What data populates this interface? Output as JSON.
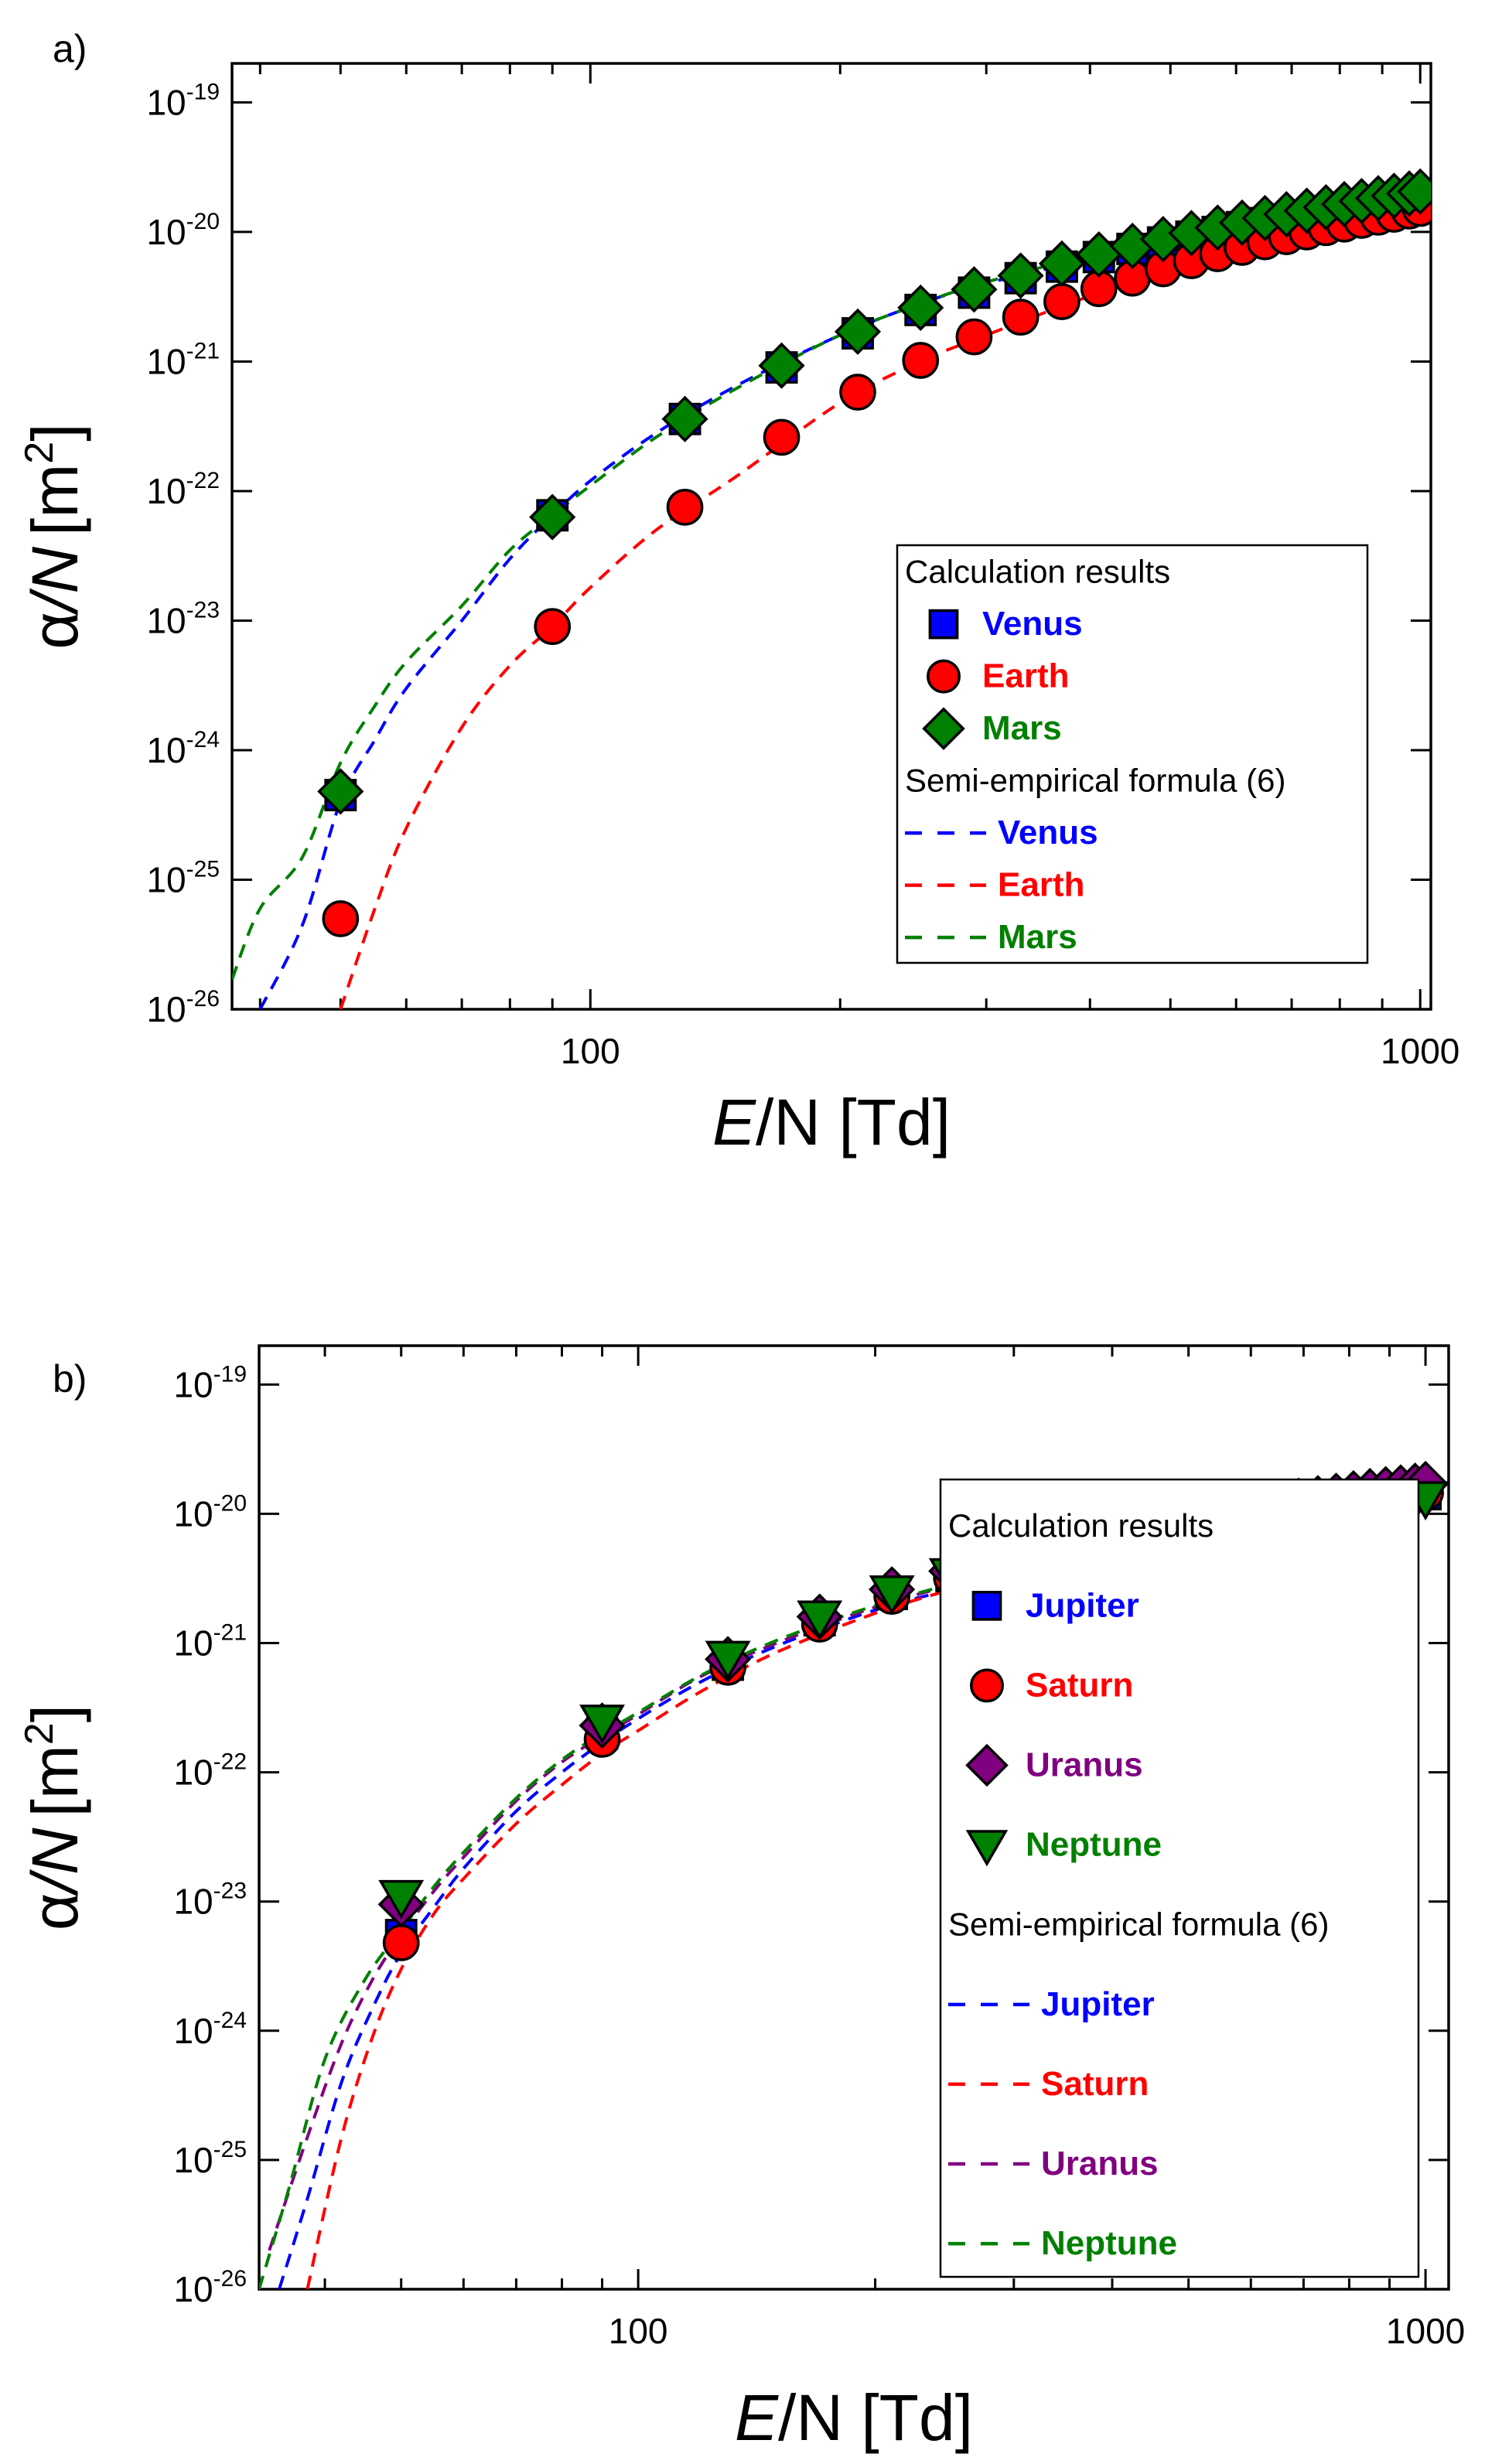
{
  "chart_data": [
    {
      "type": "scatter",
      "panel_label": "a)",
      "xlabel_italic": "E",
      "xlabel_rest": "/N [Td]",
      "ylabel_alpha": "α",
      "ylabel_N": "/N",
      "ylabel_unit": "[m",
      "ylabel_exp": "2",
      "ylabel_close": "]",
      "x_scale": "log",
      "y_scale": "log",
      "xlim": [
        37,
        1030
      ],
      "ylim": [
        1e-26,
        2e-19
      ],
      "x_ticks": [
        {
          "value": 100,
          "label": "100"
        },
        {
          "value": 1000,
          "label": "1000"
        }
      ],
      "y_ticks": [
        {
          "exp": -19,
          "base": "10",
          "sup": "-19"
        },
        {
          "exp": -20,
          "base": "10",
          "sup": "-20"
        },
        {
          "exp": -21,
          "base": "10",
          "sup": "-21"
        },
        {
          "exp": -22,
          "base": "10",
          "sup": "-22"
        },
        {
          "exp": -23,
          "base": "10",
          "sup": "-23"
        },
        {
          "exp": -24,
          "base": "10",
          "sup": "-24"
        },
        {
          "exp": -25,
          "base": "10",
          "sup": "-25"
        },
        {
          "exp": -26,
          "base": "10",
          "sup": "-26"
        }
      ],
      "legend": {
        "placement": "center-right",
        "points_header": "Calculation results",
        "lines_header": "Semi-empirical formula (6)"
      },
      "series": [
        {
          "name": "Venus",
          "color": "#0000ff",
          "marker": "square",
          "x": [
            50,
            90,
            130,
            170,
            210,
            250,
            290,
            330,
            370,
            410,
            450,
            490,
            530,
            570,
            610,
            650,
            690,
            730,
            770,
            810,
            850,
            890,
            930,
            970,
            1000
          ],
          "y": [
            4.5e-25,
            6.5e-23,
            3.6e-22,
            9e-22,
            1.65e-21,
            2.5e-21,
            3.4e-21,
            4.4e-21,
            5.4e-21,
            6.4e-21,
            7.4e-21,
            8.3e-21,
            9.2e-21,
            1e-20,
            1.09e-20,
            1.17e-20,
            1.25e-20,
            1.33e-20,
            1.41e-20,
            1.48e-20,
            1.55e-20,
            1.62e-20,
            1.69e-20,
            1.76e-20,
            1.82e-20
          ]
        },
        {
          "name": "Earth",
          "color": "#ff0000",
          "marker": "circle",
          "x": [
            50,
            90,
            130,
            170,
            210,
            250,
            290,
            330,
            370,
            410,
            450,
            490,
            530,
            570,
            610,
            650,
            690,
            730,
            770,
            810,
            850,
            890,
            930,
            970,
            1000
          ],
          "y": [
            5e-26,
            9e-24,
            7.5e-23,
            2.6e-22,
            5.8e-22,
            1.02e-21,
            1.55e-21,
            2.2e-21,
            2.9e-21,
            3.65e-21,
            4.4e-21,
            5.2e-21,
            6e-21,
            6.8e-21,
            7.6e-21,
            8.4e-21,
            9.2e-21,
            1e-20,
            1.08e-20,
            1.15e-20,
            1.23e-20,
            1.3e-20,
            1.37e-20,
            1.45e-20,
            1.52e-20
          ]
        },
        {
          "name": "Mars",
          "color": "#008000",
          "marker": "diamond",
          "x": [
            50,
            90,
            130,
            170,
            210,
            250,
            290,
            330,
            370,
            410,
            450,
            490,
            530,
            570,
            610,
            650,
            690,
            730,
            770,
            810,
            850,
            890,
            930,
            970,
            1000
          ],
          "y": [
            4.8e-25,
            6.3e-23,
            3.6e-22,
            9.3e-22,
            1.7e-21,
            2.6e-21,
            3.6e-21,
            4.6e-21,
            5.7e-21,
            6.7e-21,
            7.8e-21,
            8.8e-21,
            9.8e-21,
            1.08e-20,
            1.18e-20,
            1.28e-20,
            1.37e-20,
            1.46e-20,
            1.55e-20,
            1.64e-20,
            1.73e-20,
            1.82e-20,
            1.9e-20,
            1.98e-20,
            2.05e-20
          ]
        }
      ],
      "fits": [
        {
          "name": "Venus",
          "color": "#0000ff",
          "x": [
            40,
            45,
            50,
            55,
            60,
            70,
            80,
            90,
            100,
            120,
            150,
            200,
            250,
            300,
            400,
            500,
            600,
            800,
            1000
          ],
          "y": [
            1e-26,
            4.5e-26,
            4e-25,
            1.2e-24,
            3e-24,
            1e-23,
            3e-23,
            6.5e-23,
            1.2e-22,
            2.8e-22,
            6.5e-22,
            1.6e-21,
            2.8e-21,
            4e-21,
            6.2e-21,
            8.2e-21,
            1e-20,
            1.3e-20,
            1.6e-20
          ]
        },
        {
          "name": "Earth",
          "color": "#ff0000",
          "x": [
            50,
            55,
            60,
            70,
            80,
            90,
            100,
            120,
            150,
            200,
            250,
            300,
            400,
            500,
            600,
            800,
            1000
          ],
          "y": [
            1e-26,
            6e-26,
            2.5e-25,
            1.5e-24,
            4.5e-24,
            9e-24,
            1.8e-23,
            5e-23,
            1.3e-22,
            4.8e-22,
            1e-21,
            1.6e-21,
            3.2e-21,
            5e-21,
            6.6e-21,
            9.8e-21,
            1.25e-20
          ]
        },
        {
          "name": "Mars",
          "color": "#008000",
          "x": [
            37,
            40,
            45,
            50,
            55,
            60,
            70,
            80,
            90,
            100,
            120,
            150,
            200,
            250,
            300,
            400,
            500,
            600,
            800,
            1000
          ],
          "y": [
            1.7e-26,
            6e-26,
            1.5e-25,
            8e-25,
            2.2e-24,
            4.8e-24,
            1.3e-23,
            3.5e-23,
            6.5e-23,
            1.1e-22,
            2.6e-22,
            6.2e-22,
            1.6e-21,
            2.8e-21,
            4.1e-21,
            6.6e-21,
            9e-21,
            1.1e-20,
            1.5e-20,
            1.8e-20
          ]
        }
      ]
    },
    {
      "type": "scatter",
      "panel_label": "b)",
      "xlabel_italic": "E",
      "xlabel_rest": "/N [Td]",
      "ylabel_alpha": "α",
      "ylabel_N": "/N",
      "ylabel_unit": "[m",
      "ylabel_exp": "2",
      "ylabel_close": "]",
      "x_scale": "log",
      "y_scale": "log",
      "xlim": [
        33,
        1070
      ],
      "ylim": [
        1e-26,
        2e-19
      ],
      "x_ticks": [
        {
          "value": 100,
          "label": "100"
        },
        {
          "value": 1000,
          "label": "1000"
        }
      ],
      "y_ticks": [
        {
          "exp": -19,
          "base": "10",
          "sup": "-19"
        },
        {
          "exp": -20,
          "base": "10",
          "sup": "-20"
        },
        {
          "exp": -21,
          "base": "10",
          "sup": "-21"
        },
        {
          "exp": -22,
          "base": "10",
          "sup": "-22"
        },
        {
          "exp": -23,
          "base": "10",
          "sup": "-23"
        },
        {
          "exp": -24,
          "base": "10",
          "sup": "-24"
        },
        {
          "exp": -25,
          "base": "10",
          "sup": "-25"
        },
        {
          "exp": -26,
          "base": "10",
          "sup": "-26"
        }
      ],
      "legend": {
        "placement": "bottom-right",
        "points_header": "Calculation results",
        "lines_header": "Semi-empirical formula (6)"
      },
      "series": [
        {
          "name": "Jupiter",
          "color": "#0000ff",
          "marker": "square",
          "x": [
            50,
            90,
            130,
            170,
            210,
            250,
            290,
            330,
            370,
            410,
            450,
            490,
            530,
            570,
            610,
            650,
            690,
            730,
            770,
            810,
            850,
            890,
            930,
            970,
            1000
          ],
          "y": [
            5.5e-24,
            2e-22,
            6.8e-22,
            1.5e-21,
            2.4e-21,
            3.3e-21,
            4.2e-21,
            5e-21,
            5.8e-21,
            6.5e-21,
            7.2e-21,
            7.9e-21,
            8.5e-21,
            9.1e-21,
            9.7e-21,
            1.02e-20,
            1.07e-20,
            1.12e-20,
            1.17e-20,
            1.22e-20,
            1.27e-20,
            1.31e-20,
            1.35e-20,
            1.39e-20,
            1.42e-20
          ]
        },
        {
          "name": "Saturn",
          "color": "#ff0000",
          "marker": "circle",
          "x": [
            50,
            90,
            130,
            170,
            210,
            250,
            290,
            330,
            370,
            410,
            450,
            490,
            530,
            570,
            610,
            650,
            690,
            730,
            770,
            810,
            850,
            890,
            930,
            970,
            1000
          ],
          "y": [
            4.8e-24,
            1.8e-22,
            6.5e-22,
            1.4e-21,
            2.3e-21,
            3.2e-21,
            4.1e-21,
            5e-21,
            5.8e-21,
            6.6e-21,
            7.3e-21,
            8e-21,
            8.7e-21,
            9.3e-21,
            9.9e-21,
            1.05e-20,
            1.1e-20,
            1.15e-20,
            1.2e-20,
            1.25e-20,
            1.3e-20,
            1.34e-20,
            1.38e-20,
            1.42e-20,
            1.46e-20
          ]
        },
        {
          "name": "Uranus",
          "color": "#800080",
          "marker": "diamond",
          "x": [
            50,
            90,
            130,
            170,
            210,
            250,
            290,
            330,
            370,
            410,
            450,
            490,
            530,
            570,
            610,
            650,
            690,
            730,
            770,
            810,
            850,
            890,
            930,
            970,
            1000
          ],
          "y": [
            9.5e-24,
            2.3e-22,
            7.5e-22,
            1.6e-21,
            2.6e-21,
            3.6e-21,
            4.6e-21,
            5.6e-21,
            6.5e-21,
            7.4e-21,
            8.2e-21,
            9e-21,
            9.8e-21,
            1.05e-20,
            1.12e-20,
            1.19e-20,
            1.26e-20,
            1.32e-20,
            1.38e-20,
            1.44e-20,
            1.5e-20,
            1.55e-20,
            1.6e-20,
            1.65e-20,
            1.7e-20
          ]
        },
        {
          "name": "Neptune",
          "color": "#008000",
          "marker": "triangle-down",
          "x": [
            50,
            90,
            130,
            170,
            210,
            250,
            290,
            330,
            370,
            410,
            450,
            490,
            530,
            570,
            610,
            650,
            690,
            730,
            770,
            810,
            850,
            890,
            930,
            970,
            1000
          ],
          "y": [
            1.1e-23,
            2.5e-22,
            7.8e-22,
            1.6e-21,
            2.5e-21,
            3.4e-21,
            4.2e-21,
            5e-21,
            5.7e-21,
            6.4e-21,
            7e-21,
            7.6e-21,
            8.2e-21,
            8.8e-21,
            9.3e-21,
            9.8e-21,
            1.03e-20,
            1.08e-20,
            1.12e-20,
            1.16e-20,
            1.2e-20,
            1.24e-20,
            1.28e-20,
            1.31e-20,
            1.34e-20
          ]
        }
      ],
      "fits": [
        {
          "name": "Jupiter",
          "color": "#0000ff",
          "x": [
            35,
            38,
            42,
            46,
            50,
            55,
            60,
            70,
            80,
            90,
            100,
            120,
            150,
            200,
            250,
            300,
            400,
            500,
            600,
            800,
            1000
          ],
          "y": [
            1e-26,
            5e-26,
            4e-25,
            1.5e-24,
            4e-24,
            9e-24,
            1.8e-23,
            5e-23,
            1e-22,
            1.7e-22,
            2.6e-22,
            5e-22,
            9.5e-22,
            1.8e-21,
            2.6e-21,
            3.4e-21,
            5e-21,
            6.5e-21,
            7.8e-21,
            1.02e-20,
            1.22e-20
          ]
        },
        {
          "name": "Saturn",
          "color": "#ff0000",
          "x": [
            38,
            42,
            46,
            50,
            55,
            60,
            70,
            80,
            90,
            100,
            120,
            150,
            200,
            250,
            300,
            400,
            500,
            600,
            800,
            1000
          ],
          "y": [
            1e-26,
            1.5e-25,
            9e-25,
            3e-24,
            8e-24,
            1.5e-23,
            4e-23,
            8e-23,
            1.4e-22,
            2.1e-22,
            4.2e-22,
            8.5e-22,
            1.7e-21,
            2.6e-21,
            3.5e-21,
            5.2e-21,
            6.8e-21,
            8.2e-21,
            1.08e-20,
            1.3e-20
          ]
        },
        {
          "name": "Uranus",
          "color": "#800080",
          "x": [
            34,
            38,
            42,
            46,
            50,
            55,
            60,
            70,
            80,
            90,
            100,
            120,
            150,
            200,
            250,
            300,
            400,
            500,
            600,
            800,
            1000
          ],
          "y": [
            2e-26,
            1.5e-25,
            8e-25,
            2.5e-24,
            5.5e-24,
            1.2e-23,
            2.2e-23,
            6e-23,
            1.2e-22,
            1.9e-22,
            2.8e-22,
            5.5e-22,
            1e-21,
            1.9e-21,
            2.8e-21,
            3.7e-21,
            5.4e-21,
            7e-21,
            8.4e-21,
            1.1e-20,
            1.32e-20
          ]
        },
        {
          "name": "Neptune",
          "color": "#008000",
          "x": [
            33,
            36,
            40,
            45,
            50,
            55,
            60,
            70,
            80,
            90,
            100,
            120,
            150,
            200,
            250,
            300,
            400,
            500,
            600,
            800,
            1000
          ],
          "y": [
            1e-26,
            6e-26,
            6e-25,
            2.5e-24,
            6e-24,
            1.3e-23,
            2.4e-23,
            6.3e-23,
            1.25e-22,
            2e-22,
            2.9e-22,
            5.6e-22,
            1.05e-21,
            1.95e-21,
            2.85e-21,
            3.7e-21,
            5.3e-21,
            6.8e-21,
            8.1e-21,
            1.04e-20,
            1.25e-20
          ]
        }
      ]
    }
  ]
}
